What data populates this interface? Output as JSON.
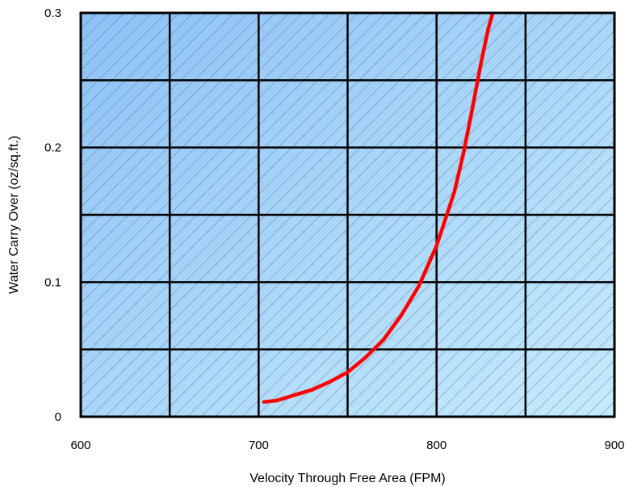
{
  "chart_data": {
    "type": "line",
    "title": "",
    "xlabel": "Velocity Through Free Area (FPM)",
    "ylabel": "Water Carry Over (oz/sq.ft.)",
    "xlim": [
      600,
      900
    ],
    "ylim": [
      0,
      0.3
    ],
    "x_ticks": [
      600,
      700,
      800,
      900
    ],
    "x_tick_labels": [
      "600",
      "700",
      "800",
      "900"
    ],
    "y_ticks": [
      0,
      0.1,
      0.2,
      0.3
    ],
    "y_tick_labels": [
      "0",
      "0.1",
      "0.2",
      "0.3"
    ],
    "x_grid_step": 50,
    "y_grid_step": 0.05,
    "grid": true,
    "legend": "none",
    "colors": {
      "series": "#ff0000",
      "grid": "#000000",
      "background_start": "#8ec2f5",
      "background_end": "#c6ebfd"
    },
    "series": [
      {
        "x": [
          703,
          710,
          720,
          730,
          740,
          750,
          760,
          770,
          780,
          790,
          800,
          810,
          815,
          820,
          825,
          829,
          832
        ],
        "y": [
          0.011,
          0.012,
          0.016,
          0.02,
          0.026,
          0.033,
          0.044,
          0.057,
          0.075,
          0.097,
          0.127,
          0.167,
          0.195,
          0.228,
          0.263,
          0.288,
          0.302
        ]
      }
    ]
  }
}
